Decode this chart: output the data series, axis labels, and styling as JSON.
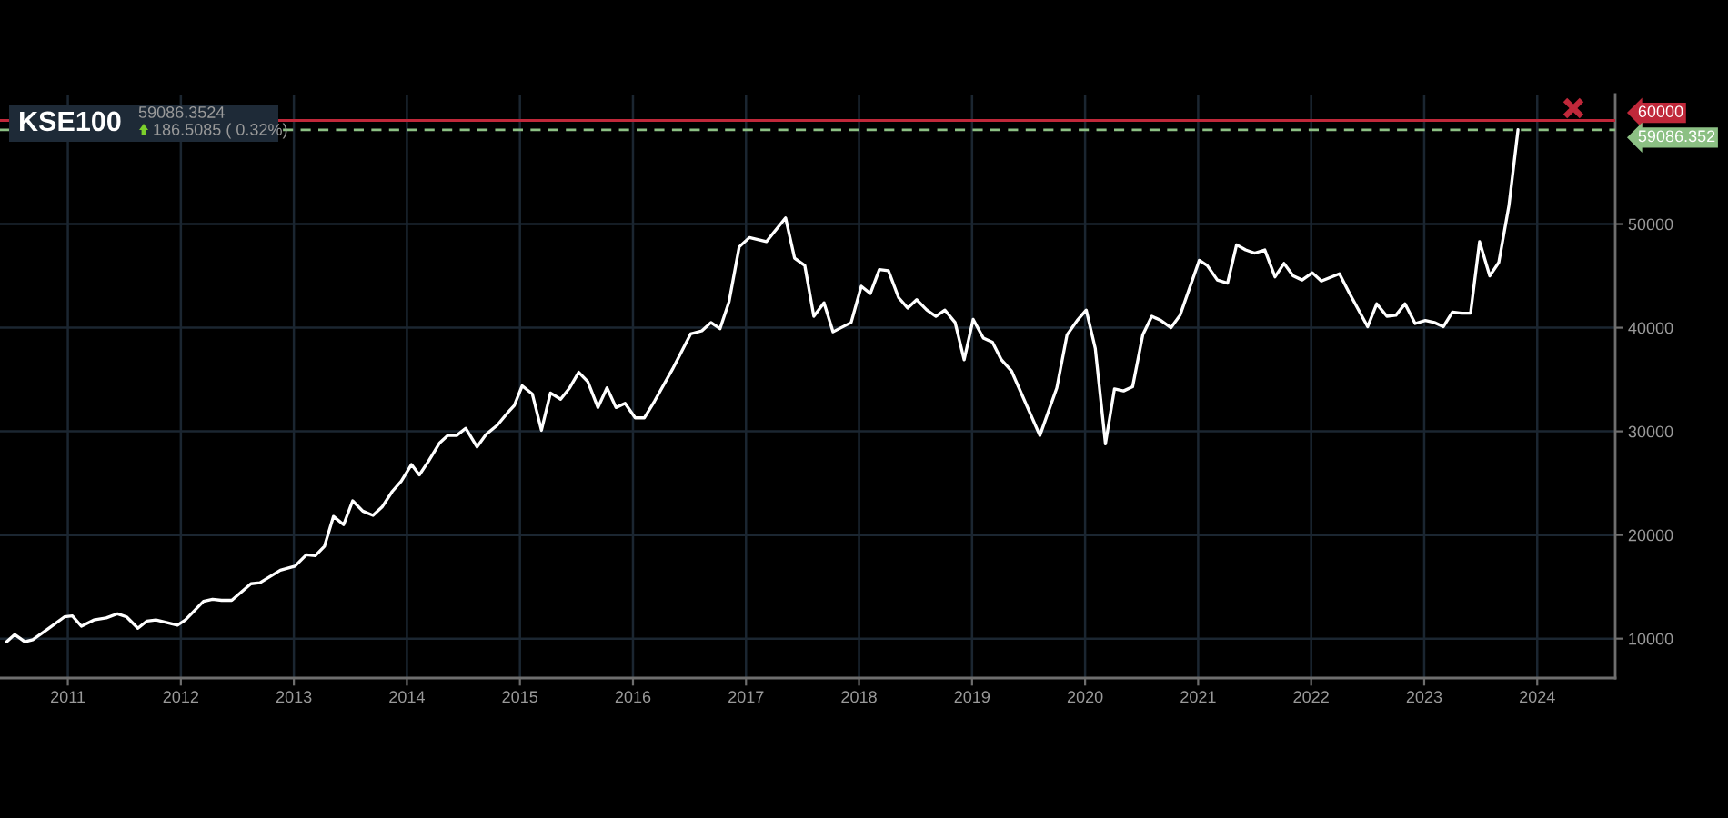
{
  "chart_data": {
    "type": "line",
    "title": "KSE100",
    "annotations": [
      "59086.3524",
      "186.5085 ( 0.32%)"
    ],
    "x": [
      2010.46,
      2010.53,
      2010.62,
      2010.69,
      2010.82,
      2010.97,
      2011.04,
      2011.12,
      2011.23,
      2011.34,
      2011.44,
      2011.52,
      2011.62,
      2011.7,
      2011.78,
      2011.97,
      2012.04,
      2012.2,
      2012.28,
      2012.36,
      2012.45,
      2012.62,
      2012.7,
      2012.88,
      2013.01,
      2013.11,
      2013.19,
      2013.27,
      2013.35,
      2013.44,
      2013.52,
      2013.61,
      2013.7,
      2013.78,
      2013.87,
      2013.95,
      2014.04,
      2014.11,
      2014.19,
      2014.29,
      2014.36,
      2014.44,
      2014.52,
      2014.62,
      2014.7,
      2014.8,
      2014.9,
      2014.95,
      2015.02,
      2015.11,
      2015.19,
      2015.27,
      2015.36,
      2015.44,
      2015.52,
      2015.6,
      2015.69,
      2015.77,
      2015.85,
      2015.93,
      2016.02,
      2016.1,
      2016.19,
      2016.35,
      2016.51,
      2016.61,
      2016.69,
      2016.77,
      2016.85,
      2016.94,
      2017.03,
      2017.18,
      2017.35,
      2017.43,
      2017.52,
      2017.6,
      2017.69,
      2017.77,
      2017.93,
      2018.02,
      2018.1,
      2018.18,
      2018.26,
      2018.35,
      2018.43,
      2018.51,
      2018.6,
      2018.68,
      2018.76,
      2018.85,
      2018.93,
      2019.01,
      2019.1,
      2019.18,
      2019.26,
      2019.35,
      2019.6,
      2019.75,
      2019.84,
      2019.93,
      2020.01,
      2020.09,
      2020.18,
      2020.26,
      2020.34,
      2020.42,
      2020.51,
      2020.59,
      2020.67,
      2020.76,
      2020.84,
      2021.01,
      2021.08,
      2021.17,
      2021.26,
      2021.34,
      2021.42,
      2021.5,
      2021.59,
      2021.68,
      2021.76,
      2021.84,
      2021.92,
      2022.01,
      2022.09,
      2022.25,
      2022.34,
      2022.5,
      2022.58,
      2022.67,
      2022.75,
      2022.83,
      2022.92,
      2023.01,
      2023.09,
      2023.17,
      2023.25,
      2023.33,
      2023.41,
      2023.49,
      2023.58,
      2023.66,
      2023.75,
      2023.83
    ],
    "series": [
      {
        "color": "#ffffff",
        "values": [
          9700,
          10400,
          9700,
          9900,
          10900,
          12100,
          12200,
          11200,
          11800,
          12000,
          12400,
          12100,
          11000,
          11700,
          11800,
          11300,
          11800,
          13600,
          13800,
          13700,
          13700,
          15300,
          15400,
          16600,
          17000,
          18100,
          18000,
          18900,
          21800,
          21000,
          23300,
          22300,
          21900,
          22700,
          24200,
          25200,
          26800,
          25800,
          27100,
          28900,
          29600,
          29600,
          30300,
          28500,
          29700,
          30600,
          31900,
          32500,
          34400,
          33600,
          30100,
          33700,
          33100,
          34200,
          35700,
          34800,
          32300,
          34200,
          32300,
          32700,
          31300,
          31300,
          32900,
          36000,
          39400,
          39700,
          40500,
          39900,
          42500,
          47800,
          48700,
          48300,
          50600,
          46700,
          46000,
          41100,
          42400,
          39600,
          40500,
          44000,
          43300,
          45600,
          45500,
          42900,
          41900,
          42700,
          41700,
          41100,
          41700,
          40500,
          36900,
          40800,
          39000,
          38600,
          36900,
          35800,
          29600,
          34200,
          39300,
          40700,
          41700,
          38000,
          28800,
          34100,
          33900,
          34300,
          39300,
          41100,
          40700,
          40000,
          41200,
          46500,
          46000,
          44600,
          44300,
          48000,
          47500,
          47200,
          47500,
          44900,
          46200,
          45000,
          44600,
          45300,
          44500,
          45200,
          43300,
          40100,
          42300,
          41100,
          41200,
          42300,
          40400,
          40700,
          40500,
          40100,
          41500,
          41400,
          41400,
          48300,
          45000,
          46300,
          51800,
          59100
        ]
      }
    ],
    "xlim": [
      2010.4,
      2024.69
    ],
    "xticks": [
      2011,
      2012,
      2013,
      2014,
      2015,
      2016,
      2017,
      2018,
      2019,
      2020,
      2021,
      2022,
      2023,
      2024
    ],
    "ylim": [
      6200,
      62500
    ],
    "yticks": [
      10000,
      20000,
      30000,
      40000,
      50000
    ],
    "grid": true,
    "line_style": "solid",
    "ref_lines": [
      {
        "axis": "y",
        "value": 60000,
        "label": "60000",
        "color": "#c0283a",
        "line_style": "solid"
      },
      {
        "axis": "y",
        "value": 59086.352,
        "label": "59086.352",
        "color": "#8cc084",
        "line_style": "dashed"
      }
    ]
  }
}
